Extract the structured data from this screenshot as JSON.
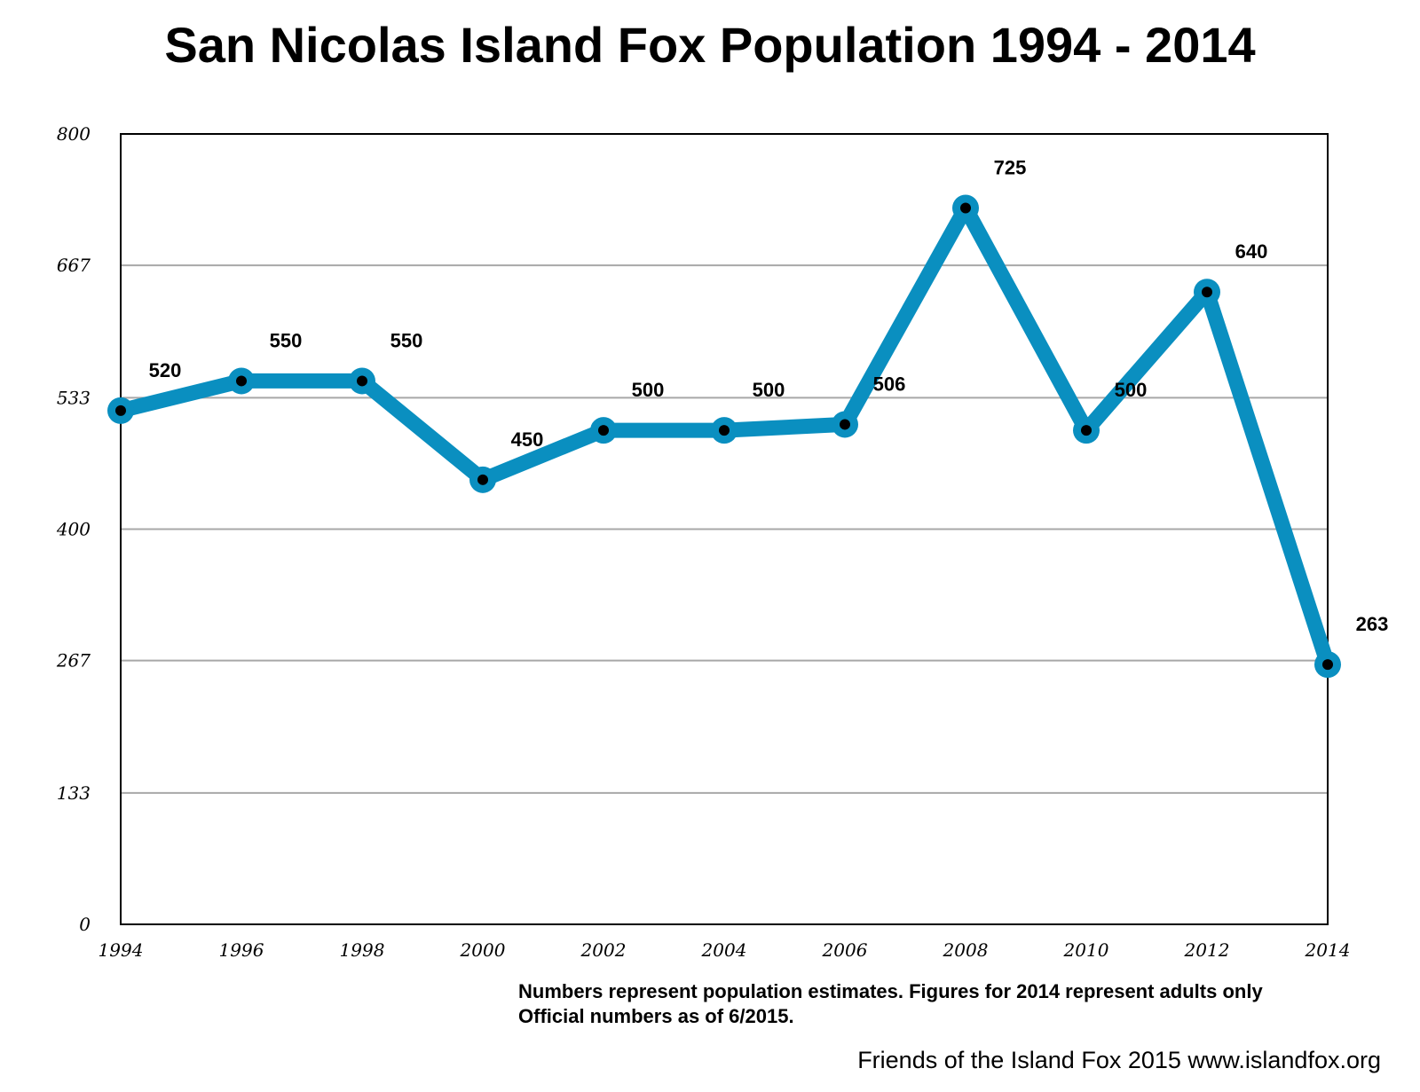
{
  "chart_data": {
    "type": "line",
    "title": "San Nicolas Island Fox Population 1994 - 2014",
    "xlabel": "",
    "ylabel": "",
    "x": [
      "1994",
      "1996",
      "1998",
      "2000",
      "2002",
      "2004",
      "2006",
      "2008",
      "2010",
      "2012",
      "2014"
    ],
    "series": [
      {
        "name": "Population",
        "values": [
          520,
          550,
          550,
          450,
          500,
          500,
          506,
          725,
          500,
          640,
          263
        ]
      }
    ],
    "data_labels": [
      "520",
      "550",
      "550",
      "450",
      "500",
      "500",
      "506",
      "725",
      "500",
      "640",
      "263"
    ],
    "ylim": [
      0,
      800
    ],
    "yticks": [
      0,
      133,
      267,
      400,
      533,
      667,
      800
    ],
    "ytick_labels": [
      "0",
      "133",
      "267",
      "400",
      "533",
      "667",
      "800"
    ],
    "grid": true,
    "line_color": "#0a8fc0",
    "marker_color": "#000000"
  },
  "note": {
    "line1": "Numbers represent population estimates. Figures for 2014 represent adults only",
    "line2": "Official numbers as of 6/2015."
  },
  "credit": "Friends of the Island Fox 2015 www.islandfox.org"
}
